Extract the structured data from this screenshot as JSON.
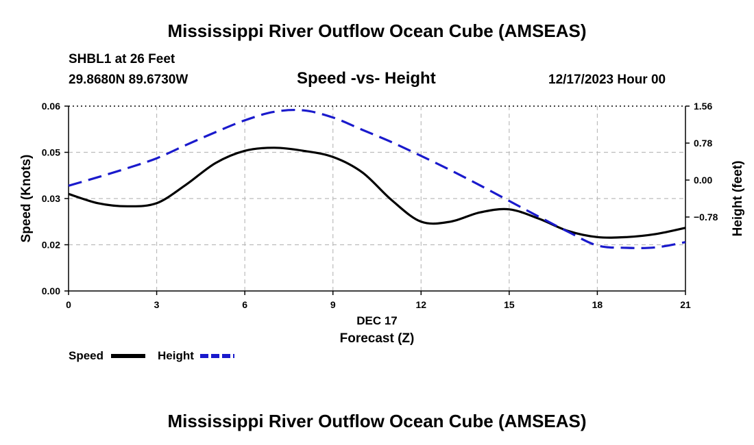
{
  "header": {
    "title": "Mississippi River Outflow Ocean Cube (AMSEAS)",
    "station": "SHBL1 at 26 Feet",
    "coords": "29.8680N  89.6730W",
    "subtitle": "Speed -vs- Height",
    "datetime": "12/17/2023 Hour 00"
  },
  "footer": {
    "title": "Mississippi River Outflow Ocean Cube (AMSEAS)"
  },
  "colors": {
    "speed": "#000000",
    "height": "#1a1acc",
    "grid": "#bbbbbb"
  },
  "chart_data": {
    "type": "line",
    "title": "Speed -vs- Height",
    "xlabel": "Forecast (Z)",
    "xlabel_date": "DEC 17",
    "ylabel": "Speed (Knots)",
    "y2label": "Height (feet)",
    "xlim": [
      0,
      21
    ],
    "ylim": [
      0.0,
      0.06
    ],
    "y2lim": [
      -2.34,
      1.56
    ],
    "x_ticks": [
      "0",
      "3",
      "6",
      "9",
      "12",
      "15",
      "18",
      "21"
    ],
    "x_tick_values": [
      0,
      3,
      6,
      9,
      12,
      15,
      18,
      21
    ],
    "y_ticks": [
      "0.00",
      "0.02",
      "0.03",
      "0.05",
      "0.06"
    ],
    "y_tick_values": [
      0.0,
      0.015,
      0.03,
      0.045,
      0.06
    ],
    "y2_ticks": [
      "1.56",
      "0.78",
      "0.00",
      "−0.78"
    ],
    "y2_tick_values": [
      1.56,
      0.78,
      0.0,
      -0.78
    ],
    "legend": [
      {
        "label": "Speed",
        "style": "solid"
      },
      {
        "label": "Height",
        "style": "dashed"
      }
    ],
    "series": [
      {
        "name": "Speed",
        "axis": "left",
        "x": [
          0,
          1,
          2,
          3,
          4,
          5,
          6,
          7,
          8,
          9,
          10,
          11,
          12,
          13,
          14,
          15,
          16,
          17,
          18,
          19,
          20,
          21
        ],
        "values": [
          0.0315,
          0.0285,
          0.0275,
          0.0285,
          0.0345,
          0.0415,
          0.0455,
          0.0465,
          0.0455,
          0.0435,
          0.0385,
          0.0295,
          0.0225,
          0.0225,
          0.0255,
          0.0265,
          0.0235,
          0.0195,
          0.0175,
          0.0175,
          0.0185,
          0.0205
        ]
      },
      {
        "name": "Height",
        "axis": "right",
        "x": [
          0,
          1,
          2,
          3,
          4,
          5,
          6,
          7,
          8,
          9,
          10,
          11,
          12,
          13,
          14,
          15,
          16,
          17,
          18,
          19,
          20,
          21
        ],
        "values": [
          -0.12,
          0.06,
          0.25,
          0.46,
          0.74,
          1.01,
          1.26,
          1.44,
          1.47,
          1.32,
          1.06,
          0.8,
          0.51,
          0.21,
          -0.11,
          -0.44,
          -0.77,
          -1.09,
          -1.38,
          -1.43,
          -1.42,
          -1.31
        ]
      }
    ]
  }
}
